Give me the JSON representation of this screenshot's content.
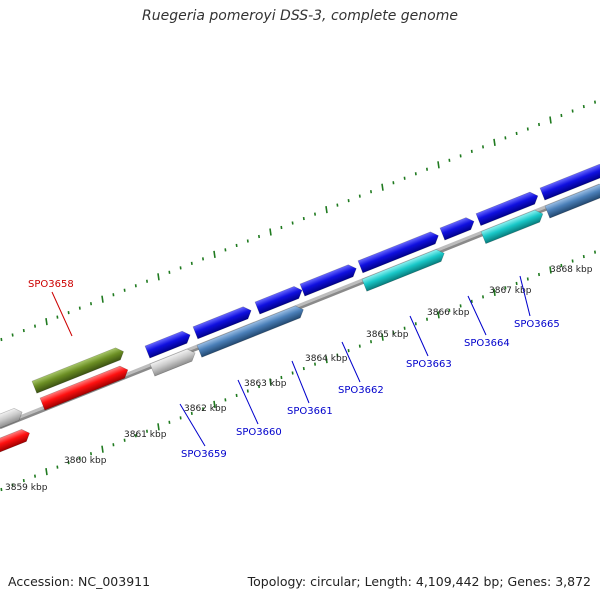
{
  "title": "Ruegeria pomeroyi DSS-3, complete genome",
  "footer": {
    "accession": "Accession: NC_003911",
    "summary": "Topology: circular; Length: 4,109,442 bp; Genes: 3,872"
  },
  "colors": {
    "backbone": "#8a8a8a",
    "tick": "#1f7a1f",
    "gene_blue": "#1010e0",
    "gene_steelblue": "#4a7fb8",
    "gene_cyan": "#19c8c8",
    "gene_red": "#ff1010",
    "gene_olive": "#6b8e23",
    "gene_gray": "#cccccc",
    "label_blue": "#0000cc",
    "label_red": "#cc0000"
  },
  "position_labels": [
    "3859 kbp",
    "3860 kbp",
    "3861 kbp",
    "3862 kbp",
    "3863 kbp",
    "3864 kbp",
    "3865 kbp",
    "3866 kbp",
    "3867 kbp",
    "3868 kbp"
  ],
  "gene_labels": [
    {
      "text": "SPO3658",
      "color": "red"
    },
    {
      "text": "SPO3659",
      "color": "blue"
    },
    {
      "text": "SPO3660",
      "color": "blue"
    },
    {
      "text": "SPO3661",
      "color": "blue"
    },
    {
      "text": "SPO3662",
      "color": "blue"
    },
    {
      "text": "SPO3663",
      "color": "blue"
    },
    {
      "text": "SPO3664",
      "color": "blue"
    },
    {
      "text": "SPO3665",
      "color": "blue"
    }
  ]
}
